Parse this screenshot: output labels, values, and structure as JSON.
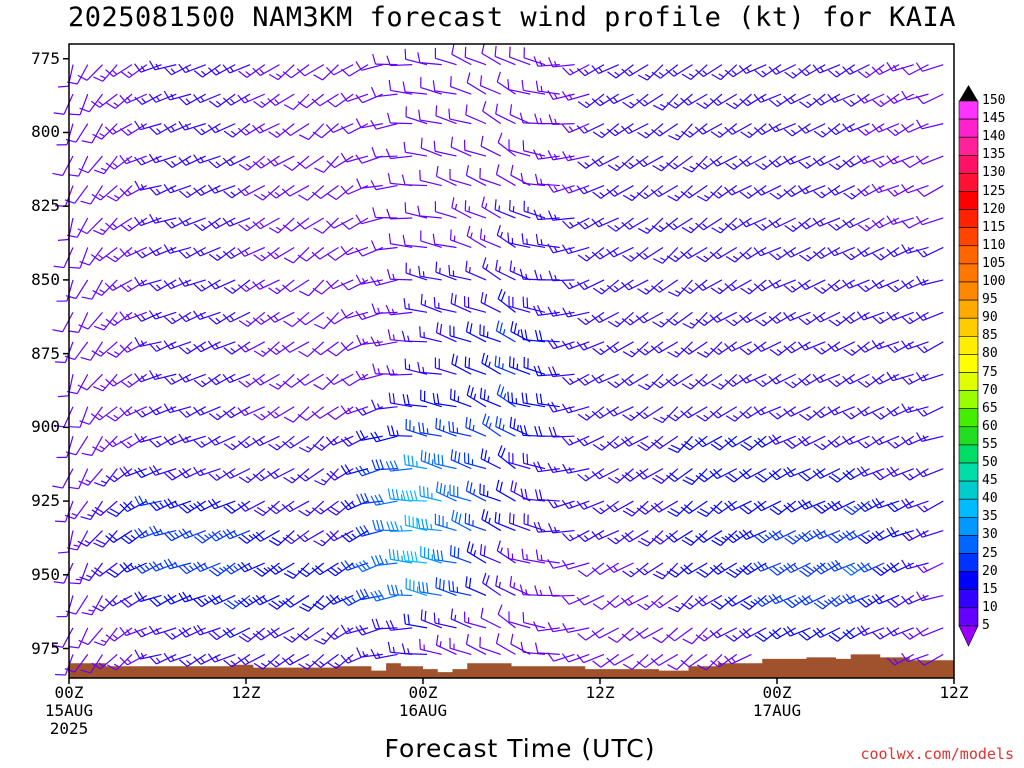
{
  "title": "2025081500 NAM3KM forecast wind profile (kt) for KAIA",
  "credit": "coolwx.com/models",
  "chart_data": {
    "type": "wind-barb-profile",
    "title": "2025081500 NAM3KM forecast wind profile (kt) for KAIA",
    "xlabel": "Forecast Time (UTC)",
    "ylabel": "",
    "x_range_hours": [
      0,
      60
    ],
    "y_range_mb": [
      770,
      985
    ],
    "y_ticks": [
      "775",
      "800",
      "825",
      "850",
      "875",
      "900",
      "925",
      "950",
      "975"
    ],
    "x_ticks": [
      {
        "hour": 0,
        "label": "00Z",
        "day": "15AUG",
        "year": "2025"
      },
      {
        "hour": 12,
        "label": "12Z",
        "day": "",
        "year": ""
      },
      {
        "hour": 24,
        "label": "00Z",
        "day": "16AUG",
        "year": ""
      },
      {
        "hour": 36,
        "label": "12Z",
        "day": "",
        "year": ""
      },
      {
        "hour": 48,
        "label": "00Z",
        "day": "17AUG",
        "year": ""
      },
      {
        "hour": 60,
        "label": "12Z",
        "day": "",
        "year": ""
      }
    ],
    "colorbar_labels": [
      "150",
      "145",
      "140",
      "135",
      "130",
      "125",
      "120",
      "115",
      "110",
      "105",
      "100",
      "95",
      "90",
      "85",
      "80",
      "75",
      "70",
      "65",
      "60",
      "55",
      "50",
      "45",
      "40",
      "35",
      "30",
      "25",
      "20",
      "15",
      "10",
      "5"
    ],
    "colorbar_colors": [
      "#ff33ff",
      "#ff22cc",
      "#ff2299",
      "#ff1166",
      "#ff1133",
      "#ff0000",
      "#ff2200",
      "#ff4400",
      "#ff6600",
      "#ff7700",
      "#ff8800",
      "#ffaa00",
      "#ffcc00",
      "#ffee00",
      "#ffff00",
      "#ddff00",
      "#99ff00",
      "#44ee00",
      "#22dd22",
      "#00dd66",
      "#00ddaa",
      "#00cccc",
      "#00bbff",
      "#0099ff",
      "#0066ff",
      "#0033ff",
      "#0000ff",
      "#3300ff",
      "#6600ff",
      "#9900ff"
    ],
    "surface_color": "#a0522d",
    "terrain_mb": [
      {
        "hour": 0,
        "p": 980
      },
      {
        "hour": 2.5,
        "p": 981
      },
      {
        "hour": 11,
        "p": 980.5
      },
      {
        "hour": 12.5,
        "p": 981.5
      },
      {
        "hour": 18,
        "p": 981
      },
      {
        "hour": 20.5,
        "p": 982.5
      },
      {
        "hour": 21.5,
        "p": 980
      },
      {
        "hour": 22.5,
        "p": 981
      },
      {
        "hour": 24,
        "p": 982
      },
      {
        "hour": 25,
        "p": 983
      },
      {
        "hour": 26,
        "p": 982
      },
      {
        "hour": 27,
        "p": 980
      },
      {
        "hour": 30,
        "p": 981
      },
      {
        "hour": 35,
        "p": 982
      },
      {
        "hour": 40,
        "p": 982.5
      },
      {
        "hour": 42,
        "p": 981
      },
      {
        "hour": 44,
        "p": 980
      },
      {
        "hour": 47,
        "p": 978.5
      },
      {
        "hour": 50,
        "p": 978
      },
      {
        "hour": 52,
        "p": 978.5
      },
      {
        "hour": 53,
        "p": 977
      },
      {
        "hour": 55,
        "p": 978
      },
      {
        "hour": 57,
        "p": 979
      },
      {
        "hour": 60,
        "p": 980
      }
    ],
    "barb_levels_mb": [
      777,
      787,
      797,
      808,
      818,
      829,
      839,
      850,
      861,
      871,
      882,
      893,
      903,
      914,
      925,
      935,
      946,
      957,
      968,
      977
    ],
    "wind_profile": [
      {
        "hour": 0,
        "dir": 200,
        "spd": [
          10,
          10,
          10,
          10,
          10,
          10,
          10,
          10,
          10,
          10,
          10,
          10,
          10,
          10,
          10,
          10,
          10,
          10,
          10,
          10
        ]
      },
      {
        "hour": 6,
        "dir": 250,
        "spd": [
          15,
          15,
          15,
          15,
          15,
          15,
          15,
          15,
          15,
          15,
          15,
          15,
          15,
          20,
          25,
          25,
          25,
          20,
          15,
          15
        ]
      },
      {
        "hour": 12,
        "dir": 240,
        "spd": [
          15,
          15,
          15,
          15,
          15,
          15,
          15,
          15,
          15,
          15,
          15,
          15,
          15,
          15,
          20,
          25,
          25,
          25,
          20,
          15
        ]
      },
      {
        "hour": 18,
        "dir": 230,
        "spd": [
          10,
          10,
          10,
          10,
          10,
          10,
          10,
          10,
          10,
          10,
          10,
          10,
          15,
          15,
          15,
          15,
          20,
          20,
          15,
          15
        ]
      },
      {
        "hour": 24,
        "dir": 280,
        "spd": [
          10,
          10,
          10,
          10,
          10,
          10,
          10,
          15,
          15,
          15,
          15,
          20,
          25,
          35,
          40,
          40,
          40,
          35,
          20,
          15
        ]
      },
      {
        "hour": 30,
        "dir": 300,
        "spd": [
          10,
          10,
          10,
          10,
          10,
          15,
          15,
          15,
          20,
          25,
          25,
          25,
          25,
          20,
          20,
          20,
          15,
          15,
          10,
          10
        ]
      },
      {
        "hour": 36,
        "dir": 240,
        "spd": [
          15,
          15,
          15,
          15,
          15,
          15,
          15,
          15,
          15,
          15,
          15,
          15,
          15,
          15,
          15,
          15,
          10,
          10,
          10,
          10
        ]
      },
      {
        "hour": 42,
        "dir": 230,
        "spd": [
          15,
          15,
          15,
          15,
          15,
          15,
          15,
          15,
          15,
          15,
          15,
          15,
          20,
          20,
          20,
          20,
          20,
          15,
          10,
          10
        ]
      },
      {
        "hour": 48,
        "dir": 240,
        "spd": [
          15,
          15,
          15,
          15,
          15,
          15,
          15,
          15,
          15,
          15,
          15,
          15,
          20,
          20,
          20,
          25,
          25,
          25,
          20,
          15
        ]
      },
      {
        "hour": 54,
        "dir": 240,
        "spd": [
          15,
          15,
          15,
          15,
          15,
          15,
          15,
          15,
          15,
          15,
          15,
          15,
          15,
          20,
          25,
          25,
          30,
          25,
          20,
          15
        ]
      },
      {
        "hour": 60,
        "dir": 250,
        "spd": [
          10,
          10,
          10,
          10,
          10,
          10,
          15,
          15,
          15,
          15,
          15,
          15,
          15,
          15,
          15,
          15,
          10,
          10,
          10,
          10
        ]
      }
    ]
  }
}
